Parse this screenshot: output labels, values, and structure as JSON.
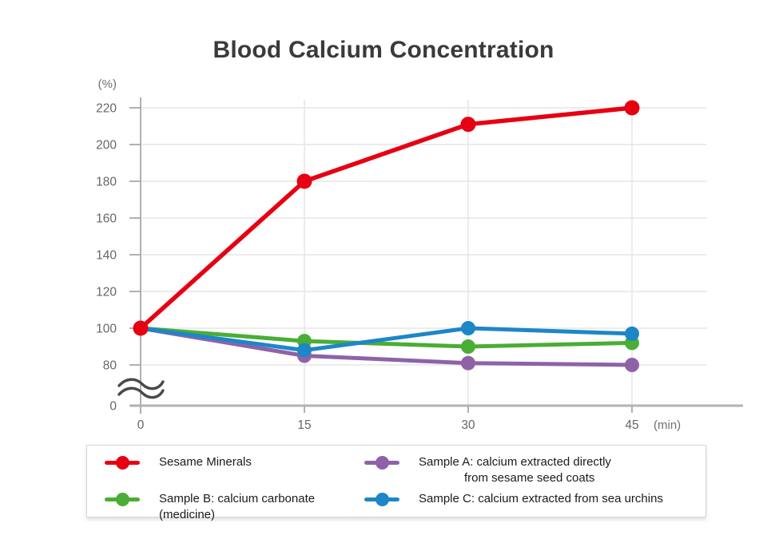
{
  "title": "Blood Calcium Concentration",
  "chart_data": {
    "type": "line",
    "title": "Blood Calcium Concentration",
    "x_label": "(min)",
    "y_label": "(%)",
    "x": [
      0,
      15,
      30,
      45
    ],
    "x_tick_labels": [
      "0",
      "15",
      "30",
      "45"
    ],
    "y_ticks_display": [
      220,
      200,
      180,
      160,
      140,
      120,
      100,
      80,
      0
    ],
    "y_axis_break_between": [
      0,
      80
    ],
    "ylim_visible": [
      80,
      225
    ],
    "grid": true,
    "legend_position": "bottom",
    "series": [
      {
        "id": "sesame-minerals",
        "name": "Sesame Minerals",
        "color": "#e60012",
        "values": [
          100,
          180,
          211,
          220
        ]
      },
      {
        "id": "sample-a",
        "name": "Sample A: calcium extracted directly from sesame seed coats",
        "color": "#8f62a8",
        "values": [
          100,
          85,
          81,
          80
        ]
      },
      {
        "id": "sample-b",
        "name": "Sample B: calcium carbonate (medicine)",
        "color": "#4aad35",
        "values": [
          100,
          93,
          90,
          92
        ]
      },
      {
        "id": "sample-c",
        "name": "Sample C: calcium extracted from sea urchins",
        "color": "#1d86c8",
        "values": [
          100,
          88,
          100,
          97
        ]
      }
    ]
  },
  "legend": {
    "items": [
      {
        "id": "sesame-minerals",
        "color": "#e60012",
        "lines": [
          "Sesame Minerals"
        ]
      },
      {
        "id": "sample-a",
        "color": "#8f62a8",
        "lines": [
          "Sample A: calcium extracted directly",
          "from sesame seed coats"
        ]
      },
      {
        "id": "sample-b",
        "color": "#4aad35",
        "lines": [
          "Sample B: calcium carbonate (medicine)"
        ]
      },
      {
        "id": "sample-c",
        "color": "#1d86c8",
        "lines": [
          "Sample C: calcium extracted from sea urchins"
        ]
      }
    ]
  }
}
